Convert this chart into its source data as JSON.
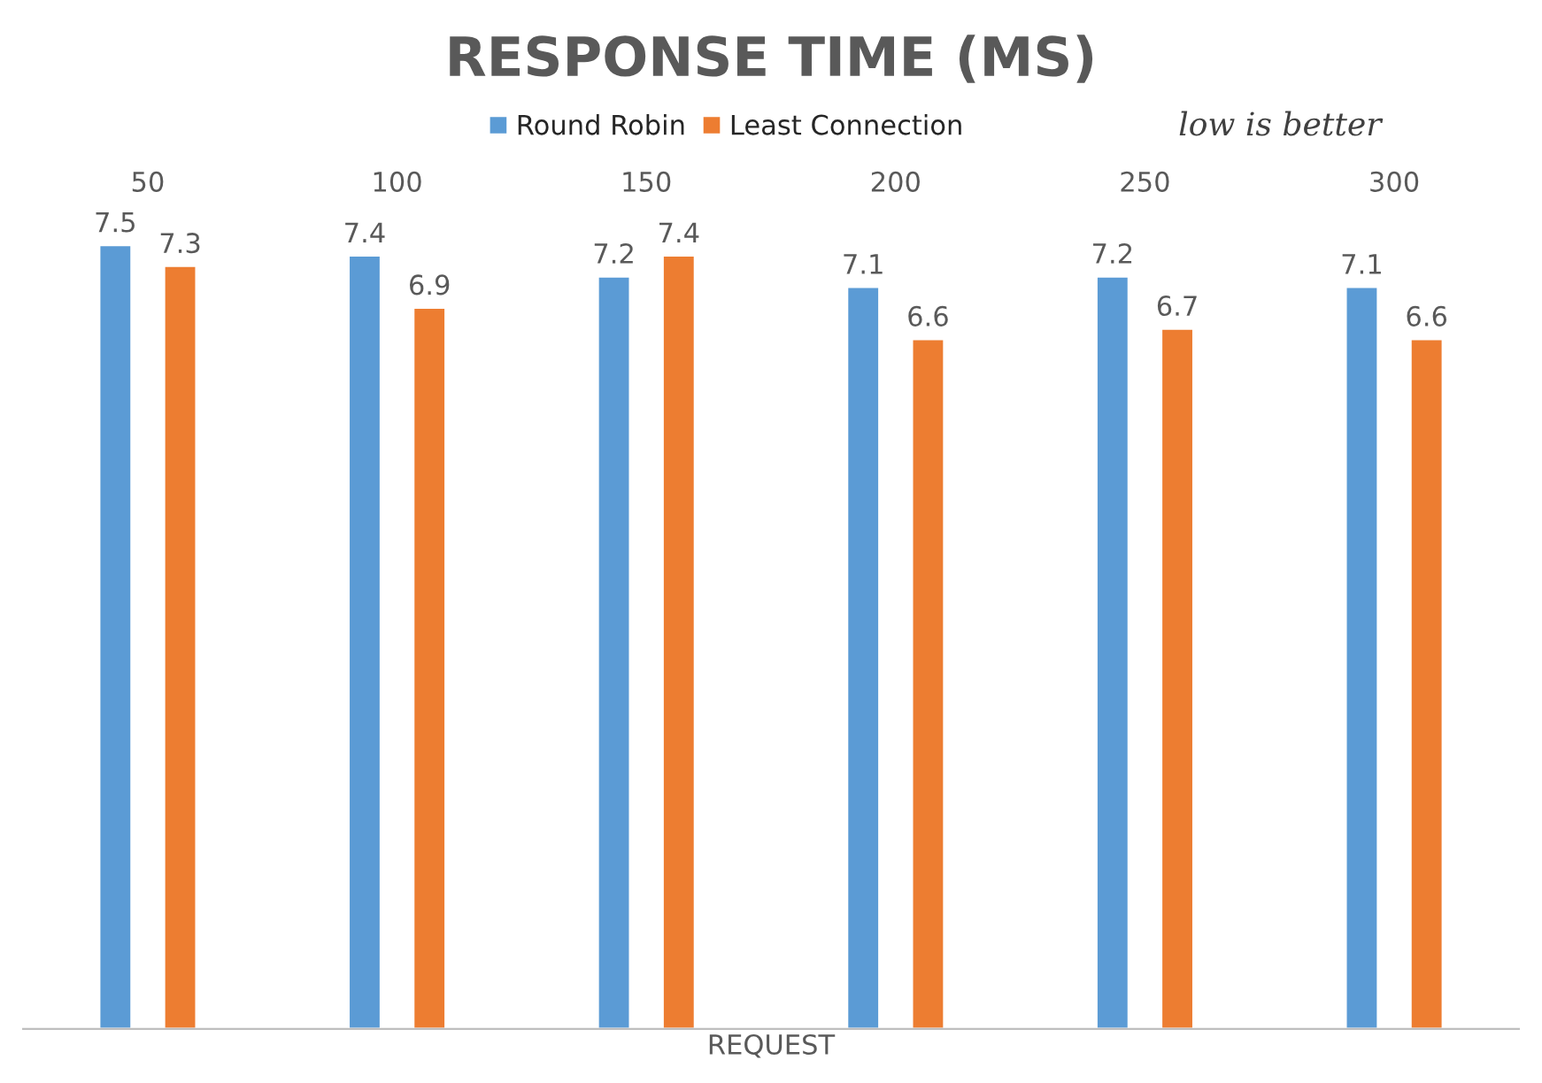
{
  "chart_data": {
    "type": "bar",
    "title": "RESPONSE TIME (MS)",
    "xlabel": "REQUEST",
    "categories": [
      "50",
      "100",
      "150",
      "200",
      "250",
      "300"
    ],
    "series": [
      {
        "name": "Round Robin",
        "color": "#5b9bd5",
        "values": [
          7.5,
          7.4,
          7.2,
          7.1,
          7.2,
          7.1
        ]
      },
      {
        "name": "Least Connection",
        "color": "#ed7d31",
        "values": [
          7.3,
          6.9,
          7.4,
          6.6,
          6.7,
          6.6
        ]
      }
    ],
    "tick_labels": "x",
    "data_labels": true,
    "legend": "top",
    "grid": false,
    "annotations": [
      "low is better"
    ]
  }
}
